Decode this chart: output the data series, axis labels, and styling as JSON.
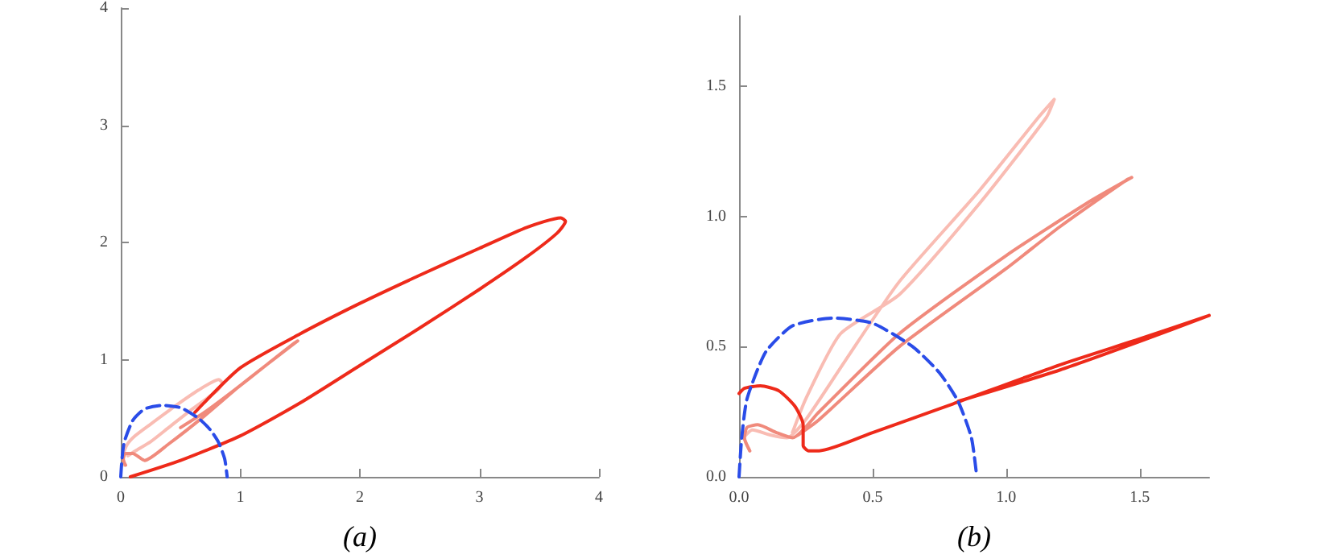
{
  "chart_data": [
    {
      "type": "line",
      "xlabel": "(a)",
      "xlim": [
        0,
        4
      ],
      "ylim": [
        0,
        4
      ],
      "xticks": [
        0,
        1,
        2,
        3,
        4
      ],
      "yticks": [
        0,
        1,
        2,
        3,
        4
      ],
      "grid": false,
      "marker": "none",
      "series": [
        {
          "color": "#f9bcb3",
          "x": [
            0.03,
            0.02,
            0.05,
            0.12,
            0.25,
            0.45,
            0.65,
            0.82,
            0.85,
            0.8,
            0.6,
            0.4,
            0.25,
            0.12,
            0.06
          ],
          "values": [
            0.1,
            0.18,
            0.27,
            0.35,
            0.45,
            0.6,
            0.74,
            0.83,
            0.8,
            0.73,
            0.58,
            0.42,
            0.3,
            0.22,
            0.18
          ]
        },
        {
          "color": "#f08a7c",
          "x": [
            0.04,
            0.02,
            0.04,
            0.1,
            0.2,
            0.4,
            0.7,
            1.0,
            1.25,
            1.48,
            1.45,
            1.2,
            0.95,
            0.7,
            0.5
          ],
          "values": [
            0.1,
            0.15,
            0.2,
            0.2,
            0.14,
            0.28,
            0.52,
            0.78,
            0.98,
            1.16,
            1.14,
            0.94,
            0.74,
            0.55,
            0.42
          ]
        },
        {
          "color": "#ee2a1a",
          "x": [
            0.08,
            0.5,
            1.0,
            1.5,
            2.0,
            2.5,
            3.0,
            3.4,
            3.65,
            3.72,
            3.68,
            3.4,
            3.0,
            2.5,
            2.0,
            1.5,
            1.0,
            0.62
          ],
          "values": [
            0.0,
            0.14,
            0.35,
            0.63,
            0.95,
            1.27,
            1.6,
            1.88,
            2.08,
            2.18,
            2.21,
            2.13,
            1.95,
            1.72,
            1.48,
            1.22,
            0.93,
            0.55
          ]
        },
        {
          "color": "#2a4ce8",
          "line_style": "dashed",
          "x": [
            0,
            0.01,
            0.03,
            0.1,
            0.2,
            0.35,
            0.5,
            0.65,
            0.75,
            0.82,
            0.87,
            0.89
          ],
          "values": [
            0,
            0.15,
            0.3,
            0.48,
            0.58,
            0.61,
            0.59,
            0.5,
            0.4,
            0.29,
            0.15,
            0
          ]
        }
      ]
    },
    {
      "type": "line",
      "xlabel": "(b)",
      "xlim": [
        0,
        1.76
      ],
      "ylim": [
        0,
        1.77
      ],
      "xticks": [
        {
          "value": 0,
          "label": "0.0"
        },
        {
          "value": 0.5,
          "label": "0.5"
        },
        {
          "value": 1,
          "label": "1.0"
        },
        {
          "value": 1.5,
          "label": "1.5"
        }
      ],
      "yticks": [
        {
          "value": 0,
          "label": "0.0"
        },
        {
          "value": 0.5,
          "label": "0.5"
        },
        {
          "value": 1,
          "label": "1.0"
        },
        {
          "value": 1.5,
          "label": "1.5"
        }
      ],
      "grid": false,
      "marker": "none",
      "series": [
        {
          "color": "#f9bcb3",
          "x": [
            0.04,
            0.02,
            0.05,
            0.12,
            0.18,
            0.25,
            0.4,
            0.6,
            0.9,
            1.12,
            1.18,
            1.15,
            0.9,
            0.6,
            0.38,
            0.25,
            0.2
          ],
          "values": [
            0.1,
            0.15,
            0.18,
            0.16,
            0.15,
            0.22,
            0.45,
            0.75,
            1.1,
            1.38,
            1.45,
            1.38,
            1.05,
            0.7,
            0.55,
            0.3,
            0.17
          ]
        },
        {
          "color": "#f08a7c",
          "x": [
            0.04,
            0.02,
            0.03,
            0.07,
            0.14,
            0.2,
            0.3,
            0.6,
            1.0,
            1.3,
            1.47,
            1.45,
            1.2,
            1.0,
            0.6,
            0.3,
            0.22
          ],
          "values": [
            0.1,
            0.15,
            0.19,
            0.2,
            0.17,
            0.15,
            0.25,
            0.55,
            0.85,
            1.05,
            1.15,
            1.14,
            0.96,
            0.8,
            0.5,
            0.22,
            0.16
          ]
        },
        {
          "color": "#ee2a1a",
          "x": [
            0,
            0.02,
            0.08,
            0.15,
            0.21,
            0.24,
            0.24,
            0.26,
            0.3,
            0.5,
            0.8,
            1.2,
            1.5,
            1.76,
            1.5,
            1.2,
            0.82
          ],
          "values": [
            0.32,
            0.34,
            0.35,
            0.33,
            0.27,
            0.2,
            0.12,
            0.1,
            0.1,
            0.17,
            0.28,
            0.43,
            0.53,
            0.62,
            0.52,
            0.41,
            0.29
          ]
        },
        {
          "color": "#2a4ce8",
          "line_style": "dashed",
          "x": [
            0,
            0.01,
            0.03,
            0.1,
            0.2,
            0.35,
            0.5,
            0.65,
            0.75,
            0.82,
            0.87,
            0.89
          ],
          "values": [
            0,
            0.15,
            0.3,
            0.48,
            0.58,
            0.61,
            0.59,
            0.5,
            0.4,
            0.29,
            0.15,
            0
          ]
        }
      ]
    }
  ]
}
